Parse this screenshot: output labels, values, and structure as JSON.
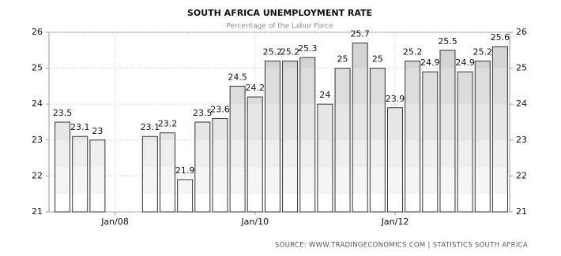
{
  "chart_data": {
    "type": "bar",
    "title": "SOUTH AFRICA UNEMPLOYMENT RATE",
    "subtitle": "Percentage of the Labor Force",
    "source": "SOURCE: WWW.TRADINGECONOMICS.COM  |  STATISTICS SOUTH AFRICA",
    "categories": [
      null,
      null,
      null,
      "Jan/08",
      null,
      null,
      null,
      null,
      null,
      null,
      null,
      "Jan/10",
      null,
      null,
      null,
      null,
      null,
      null,
      null,
      "Jan/12",
      null,
      null,
      null,
      null,
      null,
      null
    ],
    "values": [
      23.5,
      23.1,
      23,
      null,
      null,
      23.1,
      23.2,
      21.9,
      23.5,
      23.6,
      24.5,
      24.2,
      25.2,
      25.2,
      25.3,
      24,
      25,
      25.7,
      25,
      23.9,
      25.2,
      24.9,
      25.5,
      24.9,
      25.2,
      25.6
    ],
    "ylim": [
      21,
      26
    ],
    "yticks": [
      21,
      22,
      23,
      24,
      25,
      26
    ],
    "grid": true
  }
}
